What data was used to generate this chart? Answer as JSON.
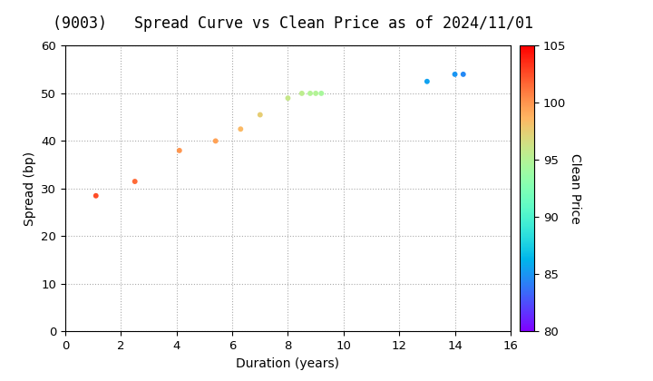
{
  "title": "(9003)   Spread Curve vs Clean Price as of 2024/11/01",
  "xlabel": "Duration (years)",
  "ylabel": "Spread (bp)",
  "colorbar_label": "Clean Price",
  "xlim": [
    0,
    16
  ],
  "ylim": [
    0,
    60
  ],
  "xticks": [
    0,
    2,
    4,
    6,
    8,
    10,
    12,
    14,
    16
  ],
  "yticks": [
    0,
    10,
    20,
    30,
    40,
    50,
    60
  ],
  "cbar_min": 80,
  "cbar_max": 105,
  "cbar_ticks": [
    80,
    85,
    90,
    95,
    100,
    105
  ],
  "points": [
    {
      "duration": 1.1,
      "spread": 28.5,
      "price": 102.5
    },
    {
      "duration": 2.5,
      "spread": 31.5,
      "price": 101.5
    },
    {
      "duration": 4.1,
      "spread": 38.0,
      "price": 100.0
    },
    {
      "duration": 5.4,
      "spread": 40.0,
      "price": 99.5
    },
    {
      "duration": 6.3,
      "spread": 42.5,
      "price": 98.5
    },
    {
      "duration": 7.0,
      "spread": 45.5,
      "price": 97.5
    },
    {
      "duration": 8.0,
      "spread": 49.0,
      "price": 96.0
    },
    {
      "duration": 8.5,
      "spread": 50.0,
      "price": 95.5
    },
    {
      "duration": 8.8,
      "spread": 50.0,
      "price": 95.0
    },
    {
      "duration": 9.0,
      "spread": 50.0,
      "price": 95.0
    },
    {
      "duration": 9.2,
      "spread": 50.0,
      "price": 94.5
    },
    {
      "duration": 13.0,
      "spread": 52.5,
      "price": 85.5
    },
    {
      "duration": 14.0,
      "spread": 54.0,
      "price": 85.0
    },
    {
      "duration": 14.3,
      "spread": 54.0,
      "price": 84.5
    }
  ],
  "background_color": "#ffffff",
  "grid_color": "#aaaaaa",
  "title_fontsize": 12,
  "label_fontsize": 10,
  "tick_fontsize": 9.5,
  "marker_size": 18
}
